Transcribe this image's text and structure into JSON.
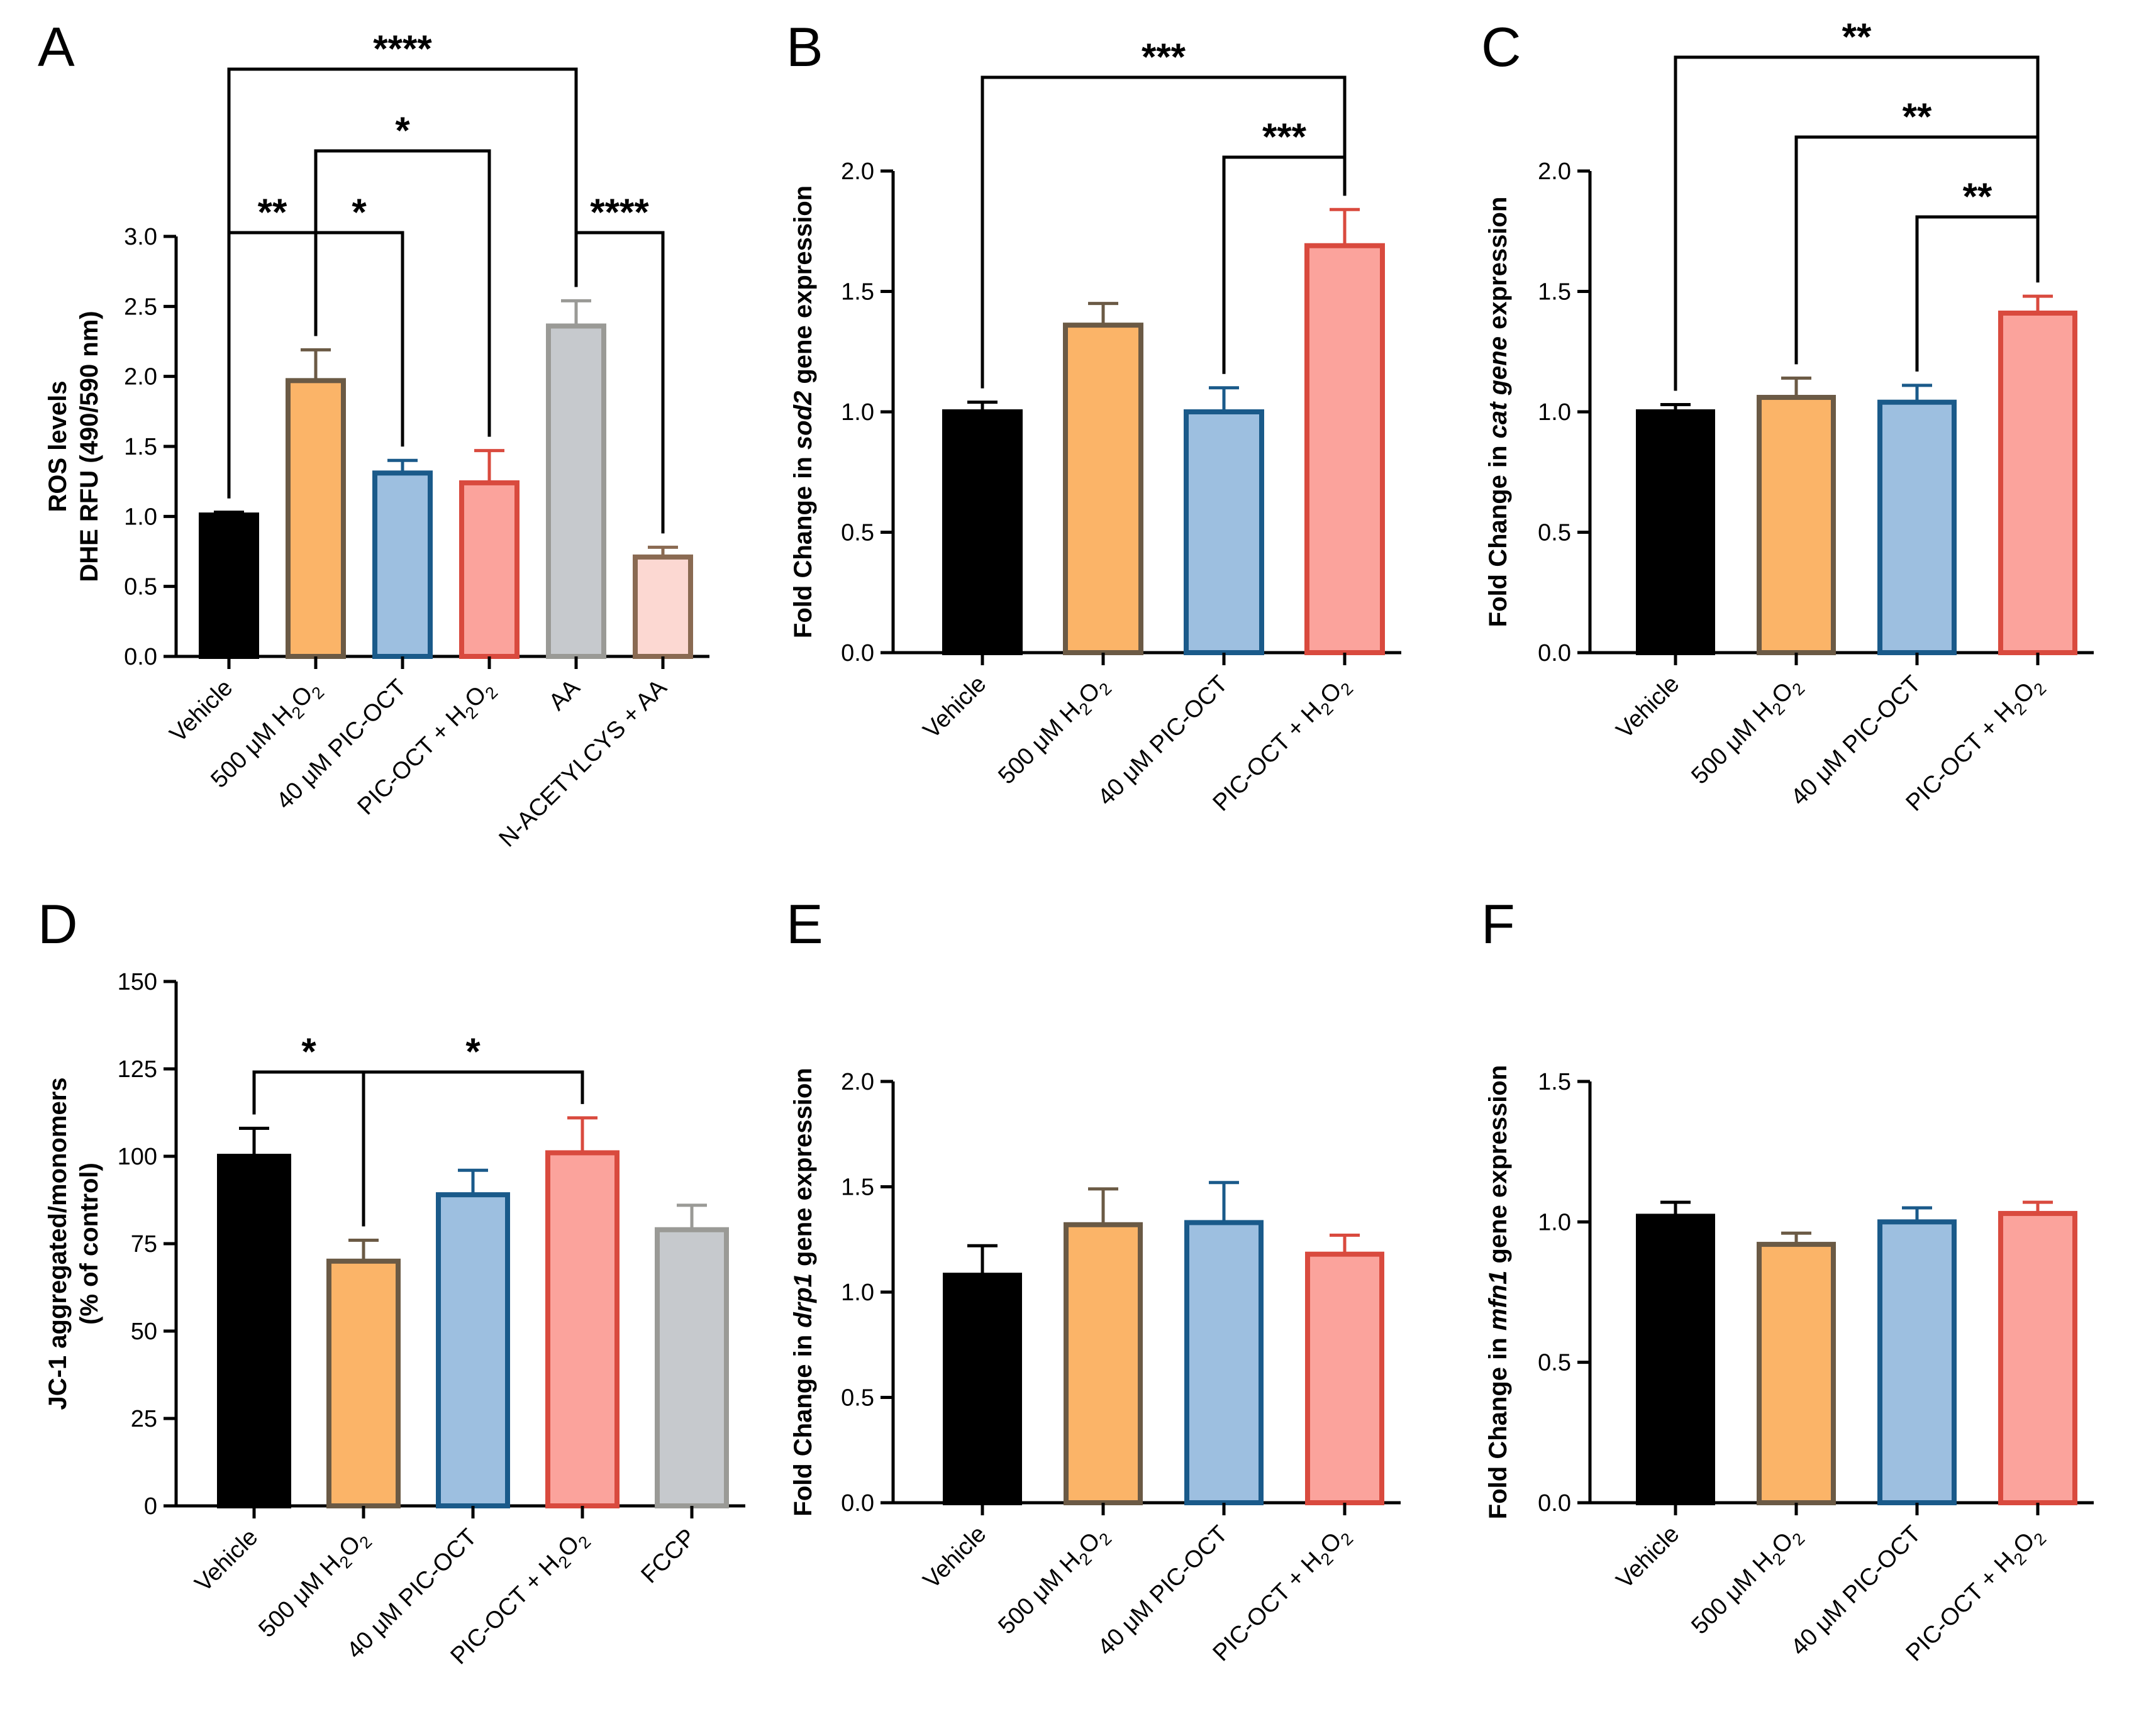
{
  "figure": {
    "palette": {
      "vehicle": {
        "fill": "#000000",
        "stroke": "#000000"
      },
      "h2o2": {
        "fill": "#fbb468",
        "stroke": "#6b5a45"
      },
      "pic": {
        "fill": "#9dbfe0",
        "stroke": "#1a5a8a"
      },
      "combo": {
        "fill": "#fba39c",
        "stroke": "#d94a3e"
      },
      "gray": {
        "fill": "#c6c9cd",
        "stroke": "#9a9a96"
      },
      "nac": {
        "fill": "#fcd8d2",
        "stroke": "#8a6a52"
      }
    }
  },
  "chart_data": [
    {
      "panel": "A",
      "type": "bar",
      "title": "",
      "xlabel": "",
      "ylabel": [
        "ROS levels",
        "DHE RFU (490/590 nm)"
      ],
      "ylabel_italic": null,
      "ylim": [
        0,
        3.0
      ],
      "ticks": [
        "0.0",
        "0.5",
        "1.0",
        "1.5",
        "2.0",
        "2.5",
        "3.0"
      ],
      "grid": false,
      "categories": [
        "Vehicle",
        "500 μM H2O2",
        "40 μM PIC-OCT",
        "PIC-OCT + H2O2",
        "AA",
        "N-ACETYLCYS + AA"
      ],
      "values": [
        1.01,
        1.97,
        1.31,
        1.24,
        2.36,
        0.71
      ],
      "errors": [
        0.02,
        0.22,
        0.09,
        0.23,
        0.18,
        0.07
      ],
      "colors": [
        "vehicle",
        "h2o2",
        "pic",
        "combo",
        "gray",
        "nac"
      ],
      "significance": [
        {
          "from": 0,
          "to": 4,
          "label": "****",
          "level": 3
        },
        {
          "from": 1,
          "to": 3,
          "label": "*",
          "level": 2
        },
        {
          "from": 0,
          "to": 1,
          "label": "**",
          "level": 1
        },
        {
          "from": 1,
          "to": 2,
          "label": "*",
          "level": 1
        },
        {
          "from": 4,
          "to": 5,
          "label": "****",
          "level": 1
        }
      ]
    },
    {
      "panel": "B",
      "type": "bar",
      "title": "",
      "xlabel": "",
      "ylabel": [
        "Fold Change in ",
        "sod2",
        " gene expression"
      ],
      "ylabel_italic": 1,
      "ylim": [
        0,
        2.0
      ],
      "ticks": [
        "0.0",
        "0.5",
        "1.0",
        "1.5",
        "2.0"
      ],
      "grid": false,
      "categories": [
        "Vehicle",
        "500 μM H2O2",
        "40 μM PIC-OCT",
        "PIC-OCT + H2O2"
      ],
      "values": [
        1.0,
        1.36,
        1.0,
        1.69
      ],
      "errors": [
        0.04,
        0.09,
        0.1,
        0.15
      ],
      "colors": [
        "vehicle",
        "h2o2",
        "pic",
        "combo"
      ],
      "significance": [
        {
          "from": 0,
          "to": 3,
          "label": "***",
          "level": 2
        },
        {
          "from": 2,
          "to": 3,
          "label": "***",
          "level": 1
        }
      ]
    },
    {
      "panel": "C",
      "type": "bar",
      "title": "",
      "xlabel": "",
      "ylabel": [
        "Fold Change in ",
        "cat gene",
        " expression"
      ],
      "ylabel_italic": 1,
      "ylim": [
        0,
        2.0
      ],
      "ticks": [
        "0.0",
        "0.5",
        "1.0",
        "1.5",
        "2.0"
      ],
      "grid": false,
      "categories": [
        "Vehicle",
        "500 μM H2O2",
        "40 μM PIC-OCT",
        "PIC-OCT + H2O2"
      ],
      "values": [
        1.0,
        1.06,
        1.04,
        1.41
      ],
      "errors": [
        0.03,
        0.08,
        0.07,
        0.07
      ],
      "colors": [
        "vehicle",
        "h2o2",
        "pic",
        "combo"
      ],
      "significance": [
        {
          "from": 0,
          "to": 3,
          "label": "**",
          "level": 3
        },
        {
          "from": 1,
          "to": 3,
          "label": "**",
          "level": 2
        },
        {
          "from": 2,
          "to": 3,
          "label": "**",
          "level": 1
        }
      ]
    },
    {
      "panel": "D",
      "type": "bar",
      "title": "",
      "xlabel": "",
      "ylabel": [
        "JC-1 aggregated/monomers",
        "(% of control)"
      ],
      "ylabel_italic": null,
      "ylim": [
        0,
        150
      ],
      "ticks": [
        "0",
        "25",
        "50",
        "75",
        "100",
        "125",
        "150"
      ],
      "grid": false,
      "categories": [
        "Vehicle",
        "500 μM H2O2",
        "40 μM PIC-OCT",
        "PIC-OCT + H2O2",
        "FCCP"
      ],
      "values": [
        100,
        70,
        89,
        101,
        79
      ],
      "errors": [
        8,
        6,
        7,
        10,
        7
      ],
      "colors": [
        "vehicle",
        "h2o2",
        "pic",
        "combo",
        "gray"
      ],
      "significance": [
        {
          "from": 0,
          "to": 1,
          "label": "*",
          "level": 1
        },
        {
          "from": 1,
          "to": 3,
          "label": "*",
          "level": 1
        }
      ]
    },
    {
      "panel": "E",
      "type": "bar",
      "title": "",
      "xlabel": "",
      "ylabel": [
        "Fold Change in ",
        "drp1",
        " gene expression"
      ],
      "ylabel_italic": 1,
      "ylim": [
        0,
        2.0
      ],
      "ticks": [
        "0.0",
        "0.5",
        "1.0",
        "1.5",
        "2.0"
      ],
      "grid": false,
      "categories": [
        "Vehicle",
        "500 μM H2O2",
        "40 μM PIC-OCT",
        "PIC-OCT + H2O2"
      ],
      "values": [
        1.08,
        1.32,
        1.33,
        1.18
      ],
      "errors": [
        0.14,
        0.17,
        0.19,
        0.09
      ],
      "colors": [
        "vehicle",
        "h2o2",
        "pic",
        "combo"
      ],
      "significance": []
    },
    {
      "panel": "F",
      "type": "bar",
      "title": "",
      "xlabel": "",
      "ylabel": [
        "Fold Change in ",
        "mfn1",
        " gene expression"
      ],
      "ylabel_italic": 1,
      "ylim": [
        0,
        1.5
      ],
      "ticks": [
        "0.0",
        "0.5",
        "1.0",
        "1.5"
      ],
      "grid": false,
      "categories": [
        "Vehicle",
        "500 μM H2O2",
        "40 μM PIC-OCT",
        "PIC-OCT + H2O2"
      ],
      "values": [
        1.02,
        0.92,
        1.0,
        1.03
      ],
      "errors": [
        0.05,
        0.04,
        0.05,
        0.04
      ],
      "colors": [
        "vehicle",
        "h2o2",
        "pic",
        "combo"
      ],
      "significance": []
    }
  ]
}
